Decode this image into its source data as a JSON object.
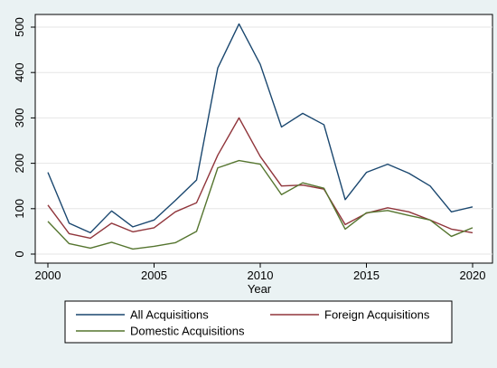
{
  "chart_data": {
    "type": "line",
    "title": "",
    "xlabel": "Year",
    "ylabel": "",
    "xlim": [
      2000,
      2020
    ],
    "ylim": [
      0,
      500
    ],
    "xticks": [
      "2000",
      "2005",
      "2010",
      "2015",
      "2020"
    ],
    "yticks": [
      "0",
      "100",
      "200",
      "300",
      "400",
      "500"
    ],
    "grid": true,
    "legend_position": "bottom",
    "x": [
      2000,
      2001,
      2002,
      2003,
      2004,
      2005,
      2006,
      2007,
      2008,
      2009,
      2010,
      2011,
      2012,
      2013,
      2014,
      2015,
      2016,
      2017,
      2018,
      2019,
      2020
    ],
    "series": [
      {
        "name": "All Acquisitions",
        "color": "#1a476f",
        "values": [
          180,
          68,
          47,
          95,
          60,
          75,
          118,
          163,
          410,
          507,
          418,
          280,
          310,
          285,
          120,
          180,
          198,
          178,
          150,
          93,
          104
        ]
      },
      {
        "name": "Foreign Acquisitions",
        "color": "#90353b",
        "values": [
          108,
          45,
          35,
          68,
          49,
          58,
          93,
          113,
          218,
          300,
          215,
          150,
          152,
          143,
          65,
          90,
          102,
          93,
          75,
          55,
          47
        ]
      },
      {
        "name": "Domestic Acquisitions",
        "color": "#55752f",
        "values": [
          72,
          23,
          13,
          26,
          11,
          17,
          25,
          50,
          190,
          206,
          198,
          131,
          157,
          145,
          55,
          91,
          96,
          85,
          75,
          39,
          58
        ]
      }
    ]
  }
}
